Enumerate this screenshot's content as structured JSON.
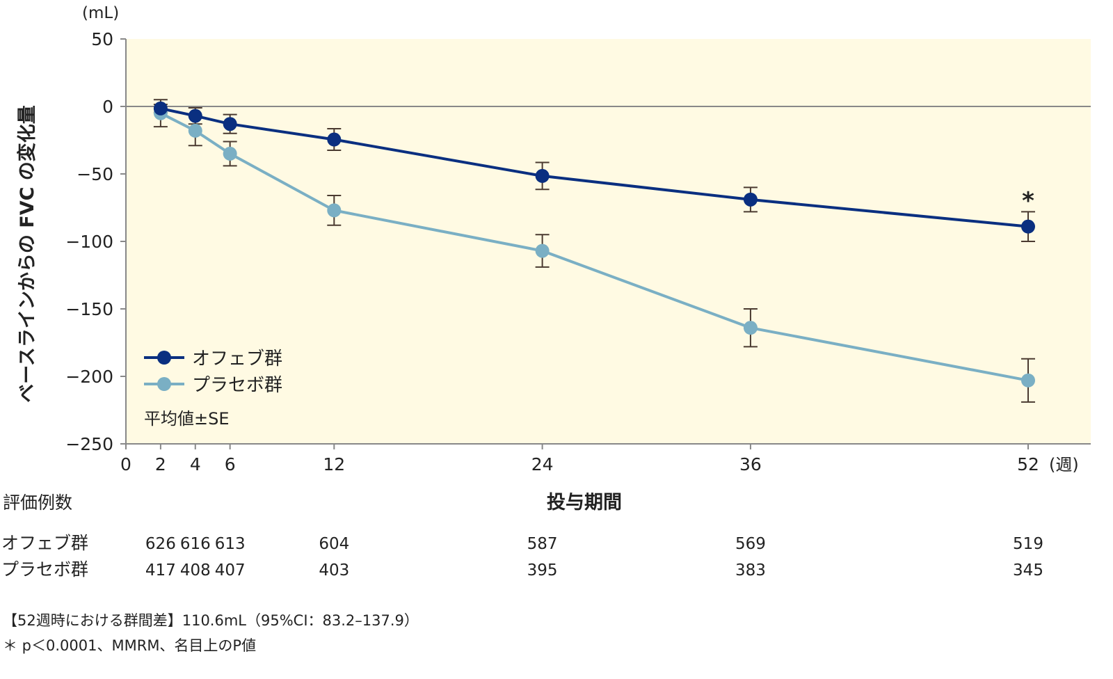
{
  "chart_data": {
    "type": "line",
    "ylabel": "ベースラインからの FVC の変化量",
    "yunit": "(mL)",
    "xlabel": "投与期間",
    "xunit": "(週)",
    "ylim": [
      -250,
      50
    ],
    "yticks": [
      50,
      0,
      -50,
      -100,
      -150,
      -200,
      -250
    ],
    "xlim": [
      0,
      52
    ],
    "xticks": [
      0,
      2,
      4,
      6,
      12,
      24,
      36,
      52
    ],
    "x": [
      2,
      4,
      6,
      12,
      24,
      36,
      52
    ],
    "grid": false,
    "background": "#fffae3",
    "legend_placement": "bottom-left",
    "legend_note": "平均値±SE",
    "significance_marker": {
      "x": 52,
      "series": 0,
      "text": "*"
    },
    "series": [
      {
        "name": "オフェブ群",
        "color": "#0a2f80",
        "values": [
          -1.5,
          -7,
          -13,
          -24.5,
          -51.5,
          -69,
          -89
        ],
        "se": [
          3,
          6,
          7,
          8,
          10,
          9,
          11
        ]
      },
      {
        "name": "プラセボ群",
        "color": "#7aafc4",
        "values": [
          -5,
          -18,
          -35,
          -77,
          -107,
          -164,
          -203
        ],
        "se": [
          10,
          11,
          9,
          11,
          12,
          14,
          16
        ]
      }
    ]
  },
  "n_table": {
    "title": "評価例数",
    "rows": [
      {
        "label": "オフェブ群",
        "values": [
          "626",
          "616",
          "613",
          "604",
          "587",
          "569",
          "519"
        ]
      },
      {
        "label": "プラセボ群",
        "values": [
          "417",
          "408",
          "407",
          "403",
          "395",
          "383",
          "345"
        ]
      }
    ]
  },
  "notes": [
    "【52週時における群間差】110.6mL（95%CI：83.2–137.9）",
    "＊ p＜0.0001、MMRM、名目上のP値"
  ]
}
